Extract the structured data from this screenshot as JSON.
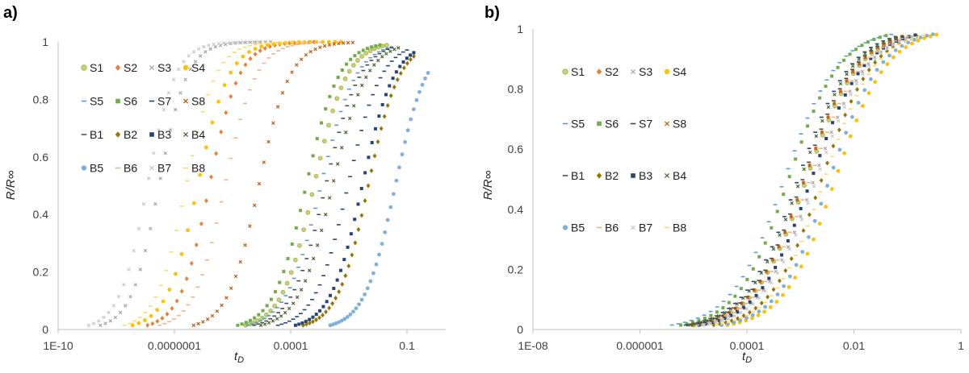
{
  "figure": {
    "panels": [
      "a)",
      "b)"
    ]
  },
  "series_styles": [
    {
      "name": "S1",
      "color": "#A9B84A",
      "marker": "circle-outline"
    },
    {
      "name": "S2",
      "color": "#ED7D31",
      "marker": "diamond"
    },
    {
      "name": "S3",
      "color": "#A5A5A5",
      "marker": "x"
    },
    {
      "name": "S4",
      "color": "#FFC000",
      "marker": "circle"
    },
    {
      "name": "S5",
      "color": "#5B9BD5",
      "marker": "dash"
    },
    {
      "name": "S6",
      "color": "#70AD47",
      "marker": "square"
    },
    {
      "name": "S7",
      "color": "#264478",
      "marker": "dash"
    },
    {
      "name": "S8",
      "color": "#C55A11",
      "marker": "x"
    },
    {
      "name": "B1",
      "color": "#4D4D4D",
      "marker": "dash"
    },
    {
      "name": "B2",
      "color": "#997300",
      "marker": "diamond"
    },
    {
      "name": "B3",
      "color": "#264478",
      "marker": "square"
    },
    {
      "name": "B4",
      "color": "#43682B",
      "marker": "x"
    },
    {
      "name": "B5",
      "color": "#7EB0DE",
      "marker": "circle"
    },
    {
      "name": "B6",
      "color": "#F4B183",
      "marker": "dash"
    },
    {
      "name": "B7",
      "color": "#C8C8C8",
      "marker": "x"
    },
    {
      "name": "B8",
      "color": "#FFD966",
      "marker": "dash"
    }
  ],
  "chart_data": [
    {
      "panel": "a)",
      "type": "scatter",
      "title": "",
      "xlabel": "t",
      "xlabel_sub": "D",
      "ylabel": "R/R∞",
      "xscale": "log",
      "xlim": [
        1e-10,
        1
      ],
      "ylim": [
        0,
        1
      ],
      "xticks": [
        1e-10,
        1e-07,
        0.0001,
        0.1
      ],
      "xtick_labels": [
        "1E-10",
        "0.0000001",
        "0.0001",
        "0.1"
      ],
      "yticks": [
        0,
        0.2,
        0.4,
        0.6,
        0.8,
        1
      ],
      "ytick_labels": [
        "0",
        "0.2",
        "0.4",
        "0.6",
        "0.8",
        "1"
      ],
      "curve_model": "R/R∞ as sigmoid of log10(tD); t50 = tD at R/R∞ = 0.5, width = spread in decades",
      "series": [
        {
          "name": "S1",
          "t50": 0.0004,
          "width": 0.42,
          "tmax": 0.03
        },
        {
          "name": "S2",
          "t50": 8e-07,
          "width": 0.38,
          "tmax": 0.0004
        },
        {
          "name": "S3",
          "t50": 4e-08,
          "width": 0.36,
          "tmax": 3e-05
        },
        {
          "name": "S4",
          "t50": 4e-07,
          "width": 0.4,
          "tmax": 0.002
        },
        {
          "name": "S5",
          "t50": 0.0006,
          "width": 0.45,
          "tmax": 0.04
        },
        {
          "name": "S6",
          "t50": 0.00025,
          "width": 0.42,
          "tmax": 0.02
        },
        {
          "name": "S7",
          "t50": 0.003,
          "width": 0.43,
          "tmax": 0.1
        },
        {
          "name": "S8",
          "t50": 1.5e-05,
          "width": 0.4,
          "tmax": 0.004
        },
        {
          "name": "B1",
          "t50": 0.0008,
          "width": 0.44,
          "tmax": 0.04
        },
        {
          "name": "B2",
          "t50": 0.01,
          "width": 0.4,
          "tmax": 0.15
        },
        {
          "name": "B3",
          "t50": 0.007,
          "width": 0.41,
          "tmax": 0.15
        },
        {
          "name": "B4",
          "t50": 0.0012,
          "width": 0.44,
          "tmax": 0.06
        },
        {
          "name": "B5",
          "t50": 0.05,
          "width": 0.4,
          "tmax": 0.35
        },
        {
          "name": "B6",
          "t50": 2e-06,
          "width": 0.4,
          "tmax": 0.0006
        },
        {
          "name": "B7",
          "t50": 2e-08,
          "width": 0.36,
          "tmax": 1.5e-05
        },
        {
          "name": "B8",
          "t50": 2e-07,
          "width": 0.38,
          "tmax": 0.0002
        }
      ]
    },
    {
      "panel": "b)",
      "type": "scatter",
      "title": "",
      "xlabel": "t",
      "xlabel_sub": "D",
      "ylabel": "R/R∞",
      "xscale": "log",
      "xlim": [
        1e-08,
        1
      ],
      "ylim": [
        0,
        1
      ],
      "xticks": [
        1e-08,
        1e-06,
        0.0001,
        0.01,
        1
      ],
      "xtick_labels": [
        "1E-08",
        "0.000001",
        "0.0001",
        "0.01",
        "1"
      ],
      "yticks": [
        0,
        0.2,
        0.4,
        0.6,
        0.8,
        1
      ],
      "ytick_labels": [
        "0",
        "0.2",
        "0.4",
        "0.6",
        "0.8",
        "1"
      ],
      "curve_model": "R/R∞ as sigmoid of log10(tD); t50 = tD at R/R∞ = 0.5, width = spread in decades",
      "series": [
        {
          "name": "S1",
          "t50": 0.0013,
          "width": 0.5,
          "tmax": 0.08
        },
        {
          "name": "S2",
          "t50": 0.0012,
          "width": 0.5,
          "tmax": 0.08
        },
        {
          "name": "S3",
          "t50": 0.0018,
          "width": 0.5,
          "tmax": 0.12
        },
        {
          "name": "S4",
          "t50": 0.0045,
          "width": 0.48,
          "tmax": 0.35
        },
        {
          "name": "S5",
          "t50": 0.0005,
          "width": 0.5,
          "tmax": 0.05
        },
        {
          "name": "S6",
          "t50": 0.0006,
          "width": 0.48,
          "tmax": 0.04
        },
        {
          "name": "S7",
          "t50": 0.0009,
          "width": 0.5,
          "tmax": 0.06
        },
        {
          "name": "S8",
          "t50": 0.0012,
          "width": 0.5,
          "tmax": 0.08
        },
        {
          "name": "B1",
          "t50": 0.0011,
          "width": 0.5,
          "tmax": 0.08
        },
        {
          "name": "B2",
          "t50": 0.0025,
          "width": 0.48,
          "tmax": 0.15
        },
        {
          "name": "B3",
          "t50": 0.0016,
          "width": 0.5,
          "tmax": 0.14
        },
        {
          "name": "B4",
          "t50": 0.001,
          "width": 0.5,
          "tmax": 0.06
        },
        {
          "name": "B5",
          "t50": 0.0035,
          "width": 0.48,
          "tmax": 0.3
        },
        {
          "name": "B6",
          "t50": 0.0015,
          "width": 0.5,
          "tmax": 0.1
        },
        {
          "name": "B7",
          "t50": 0.002,
          "width": 0.5,
          "tmax": 0.12
        },
        {
          "name": "B8",
          "t50": 0.0028,
          "width": 0.48,
          "tmax": 0.2
        }
      ]
    }
  ]
}
